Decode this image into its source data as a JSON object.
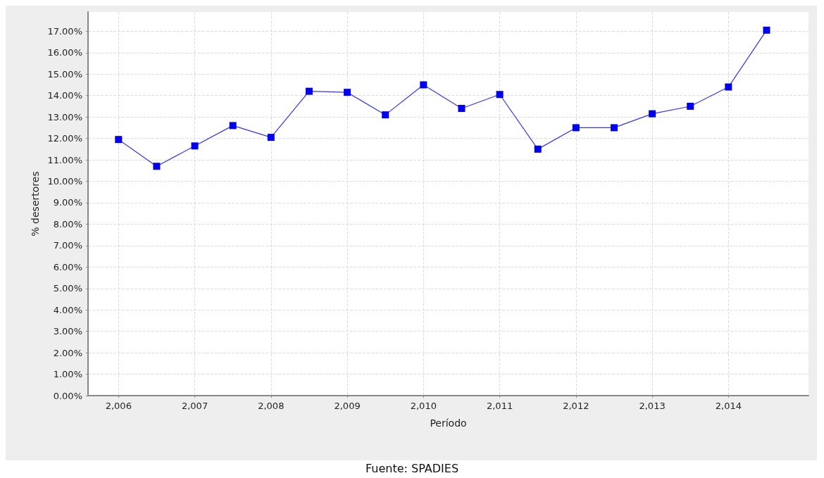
{
  "chart_data": {
    "type": "line",
    "xlabel": "Período",
    "ylabel": "% desertores",
    "x": [
      2006,
      2006.5,
      2007,
      2007.5,
      2008,
      2008.5,
      2009,
      2009.5,
      2010,
      2010.5,
      2011,
      2011.5,
      2012,
      2012.5,
      2013,
      2013.5,
      2014,
      2014.5
    ],
    "series": [
      {
        "color": "#0000ee",
        "values": [
          11.95,
          10.7,
          11.65,
          12.6,
          12.05,
          14.2,
          14.15,
          13.1,
          14.5,
          13.4,
          14.05,
          11.5,
          12.5,
          12.5,
          13.15,
          13.5,
          14.4,
          17.05
        ]
      }
    ],
    "xlim": [
      2005.6,
      2015.05
    ],
    "xticks": [
      {
        "value": 2006,
        "label": "2,006"
      },
      {
        "value": 2007,
        "label": "2,007"
      },
      {
        "value": 2008,
        "label": "2,008"
      },
      {
        "value": 2009,
        "label": "2,009"
      },
      {
        "value": 2010,
        "label": "2,010"
      },
      {
        "value": 2011,
        "label": "2,011"
      },
      {
        "value": 2012,
        "label": "2,012"
      },
      {
        "value": 2013,
        "label": "2,013"
      },
      {
        "value": 2014,
        "label": "2,014"
      }
    ],
    "ylim": [
      0,
      17.9
    ],
    "yticks": [
      {
        "value": 0,
        "label": "0.00%"
      },
      {
        "value": 1,
        "label": "1.00%"
      },
      {
        "value": 2,
        "label": "2.00%"
      },
      {
        "value": 3,
        "label": "3.00%"
      },
      {
        "value": 4,
        "label": "4.00%"
      },
      {
        "value": 5,
        "label": "5.00%"
      },
      {
        "value": 6,
        "label": "6.00%"
      },
      {
        "value": 7,
        "label": "7.00%"
      },
      {
        "value": 8,
        "label": "8.00%"
      },
      {
        "value": 9,
        "label": "9.00%"
      },
      {
        "value": 10,
        "label": "10.00%"
      },
      {
        "value": 11,
        "label": "11.00%"
      },
      {
        "value": 12,
        "label": "12.00%"
      },
      {
        "value": 13,
        "label": "13.00%"
      },
      {
        "value": 14,
        "label": "14.00%"
      },
      {
        "value": 15,
        "label": "15.00%"
      },
      {
        "value": 16,
        "label": "16.00%"
      },
      {
        "value": 17,
        "label": "17.00%"
      }
    ],
    "grid": true,
    "marker": "square",
    "line_style": "solid",
    "annotations": [
      "Fuente: SPADIES"
    ]
  }
}
